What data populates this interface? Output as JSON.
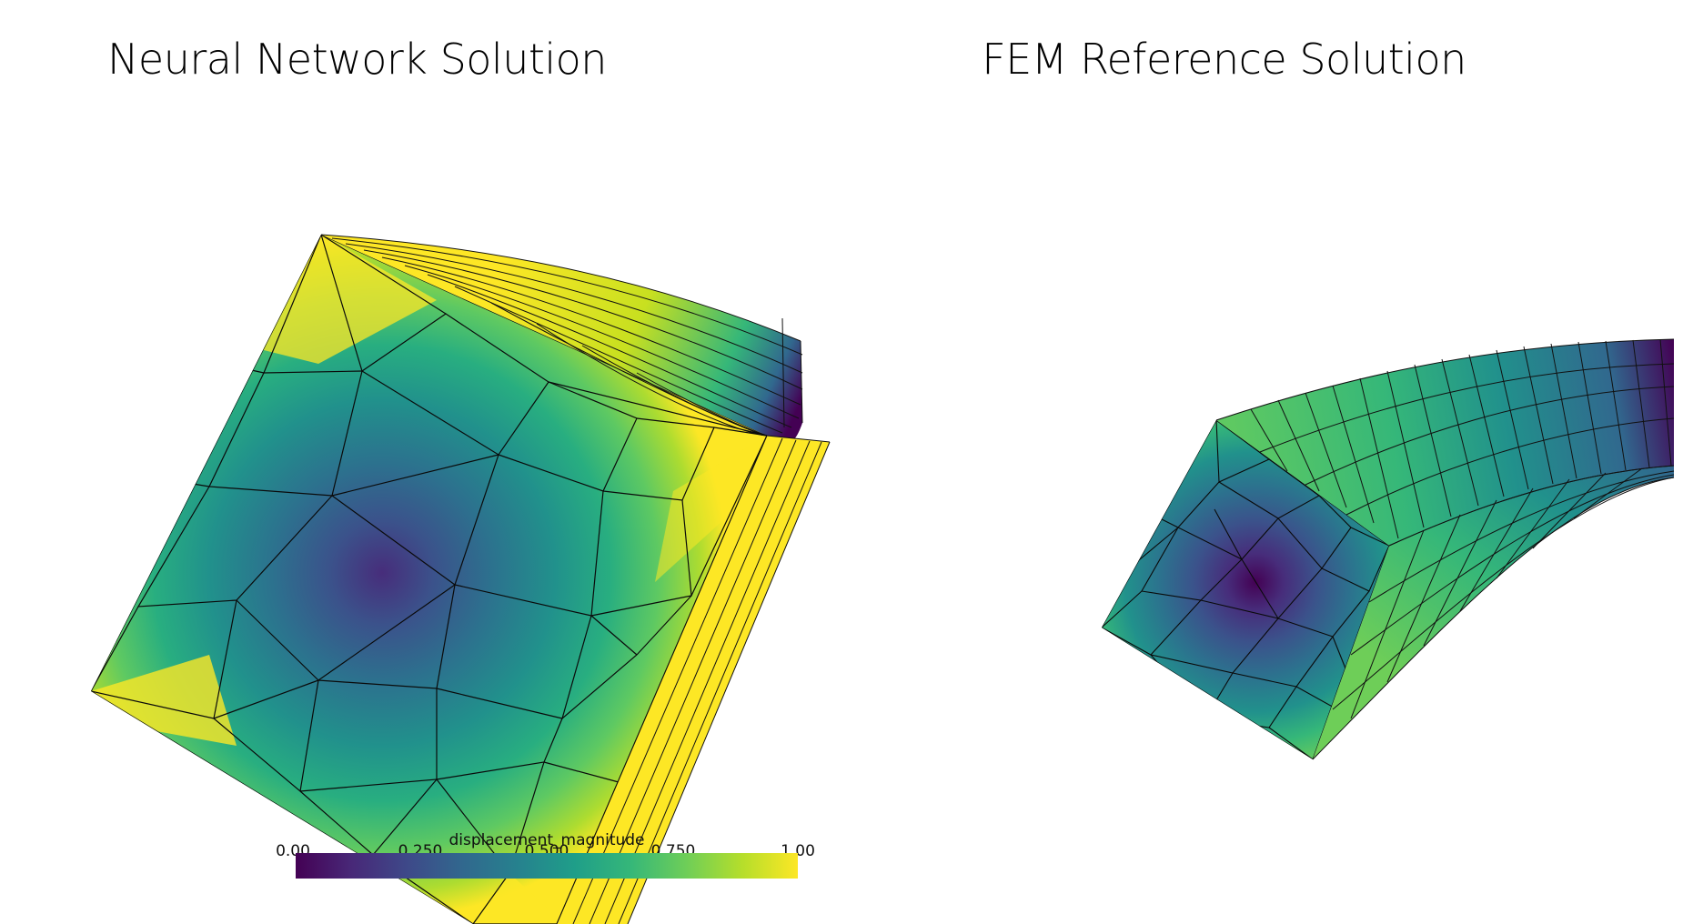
{
  "panels": [
    {
      "id": "left",
      "title": "Neural Network Solution"
    },
    {
      "id": "right",
      "title": "FEM Reference Solution"
    }
  ],
  "colorbar": {
    "title": "displacement_magnitude",
    "ticks": [
      "0.00",
      "0.250",
      "0.500",
      "0.750",
      "1.00"
    ],
    "colormap": "viridis",
    "stops": [
      "#440154",
      "#482878",
      "#3e4989",
      "#31688e",
      "#26828e",
      "#1f9e89",
      "#35b779",
      "#6ece58",
      "#b5de2b",
      "#fde725"
    ]
  }
}
